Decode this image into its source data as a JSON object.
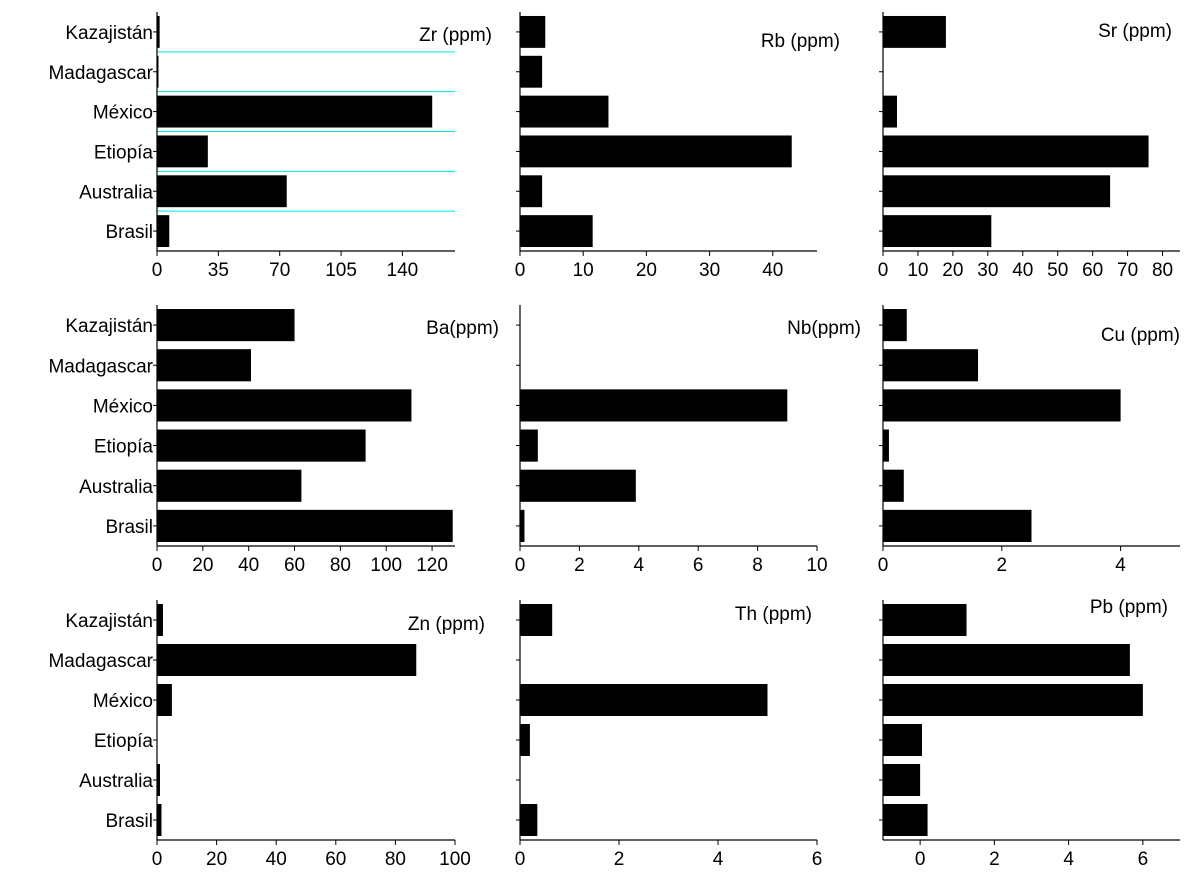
{
  "categories": [
    "Kazajistán",
    "Madagascar",
    "México",
    "Etiopía",
    "Australia",
    "Brasil"
  ],
  "colors": {
    "bar": "#000000",
    "axis": "#000000",
    "gridline": "#00e5e5"
  },
  "chart_data": [
    {
      "type": "bar",
      "orientation": "horizontal",
      "title": "Zr (ppm)",
      "categories": [
        "Kazajistán",
        "Madagascar",
        "México",
        "Etiopía",
        "Australia",
        "Brasil"
      ],
      "values": [
        1.5,
        0.5,
        157,
        29,
        74,
        7
      ],
      "xlim": [
        0,
        170
      ],
      "xticks": [
        0,
        35,
        70,
        105,
        140
      ],
      "grid": true
    },
    {
      "type": "bar",
      "orientation": "horizontal",
      "title": "Rb (ppm)",
      "categories": [
        "Kazajistán",
        "Madagascar",
        "México",
        "Etiopía",
        "Australia",
        "Brasil"
      ],
      "values": [
        4,
        3.5,
        14,
        43,
        3.5,
        11.5
      ],
      "xlim": [
        0,
        47
      ],
      "xticks": [
        0,
        10,
        20,
        30,
        40
      ],
      "grid": false
    },
    {
      "type": "bar",
      "orientation": "horizontal",
      "title": "Sr (ppm)",
      "categories": [
        "Kazajistán",
        "Madagascar",
        "México",
        "Etiopía",
        "Australia",
        "Brasil"
      ],
      "values": [
        18,
        0,
        4,
        76,
        65,
        31
      ],
      "xlim": [
        0,
        85
      ],
      "xticks": [
        0,
        10,
        20,
        30,
        40,
        50,
        60,
        70,
        80
      ],
      "grid": false
    },
    {
      "type": "bar",
      "orientation": "horizontal",
      "title": "Ba(ppm)",
      "categories": [
        "Kazajistán",
        "Madagascar",
        "México",
        "Etiopía",
        "Australia",
        "Brasil"
      ],
      "values": [
        60,
        41,
        111,
        91,
        63,
        129
      ],
      "xlim": [
        0,
        130
      ],
      "xticks": [
        0,
        20,
        40,
        60,
        80,
        100,
        120
      ],
      "grid": false
    },
    {
      "type": "bar",
      "orientation": "horizontal",
      "title": "Nb(ppm)",
      "categories": [
        "Kazajistán",
        "Madagascar",
        "México",
        "Etiopía",
        "Australia",
        "Brasil"
      ],
      "values": [
        0,
        0,
        9,
        0.6,
        3.9,
        0.15
      ],
      "xlim": [
        0,
        10
      ],
      "xticks": [
        0,
        2,
        4,
        6,
        8,
        10
      ],
      "grid": false
    },
    {
      "type": "bar",
      "orientation": "horizontal",
      "title": "Cu (ppm)",
      "categories": [
        "Kazajistán",
        "Madagascar",
        "México",
        "Etiopía",
        "Australia",
        "Brasil"
      ],
      "values": [
        0.4,
        1.6,
        4,
        0.1,
        0.35,
        2.5
      ],
      "xlim": [
        0,
        5
      ],
      "xticks": [
        0,
        2,
        4
      ],
      "grid": false
    },
    {
      "type": "bar",
      "orientation": "horizontal",
      "title": "Zn (ppm)",
      "categories": [
        "Kazajistán",
        "Madagascar",
        "México",
        "Etiopía",
        "Australia",
        "Brasil"
      ],
      "values": [
        2,
        87,
        5,
        0,
        1,
        1.5
      ],
      "xlim": [
        0,
        100
      ],
      "xticks": [
        0,
        20,
        40,
        60,
        80,
        100
      ],
      "grid": false
    },
    {
      "type": "bar",
      "orientation": "horizontal",
      "title": "Th (ppm)",
      "categories": [
        "Kazajistán",
        "Madagascar",
        "México",
        "Etiopía",
        "Australia",
        "Brasil"
      ],
      "values": [
        0.65,
        0,
        5,
        0.2,
        0,
        0.35
      ],
      "xlim": [
        0,
        6
      ],
      "xticks": [
        0,
        2,
        4,
        6
      ],
      "grid": false
    },
    {
      "type": "bar",
      "orientation": "horizontal",
      "title": "Pb (ppm)",
      "categories": [
        "Kazajistán",
        "Madagascar",
        "México",
        "Etiopía",
        "Australia",
        "Brasil"
      ],
      "values": [
        1.25,
        5.65,
        6,
        0.05,
        0,
        0.2
      ],
      "xlim": [
        -1,
        7
      ],
      "xticks": [
        0,
        2,
        4,
        6
      ],
      "bar_base": -1,
      "grid": false
    }
  ]
}
